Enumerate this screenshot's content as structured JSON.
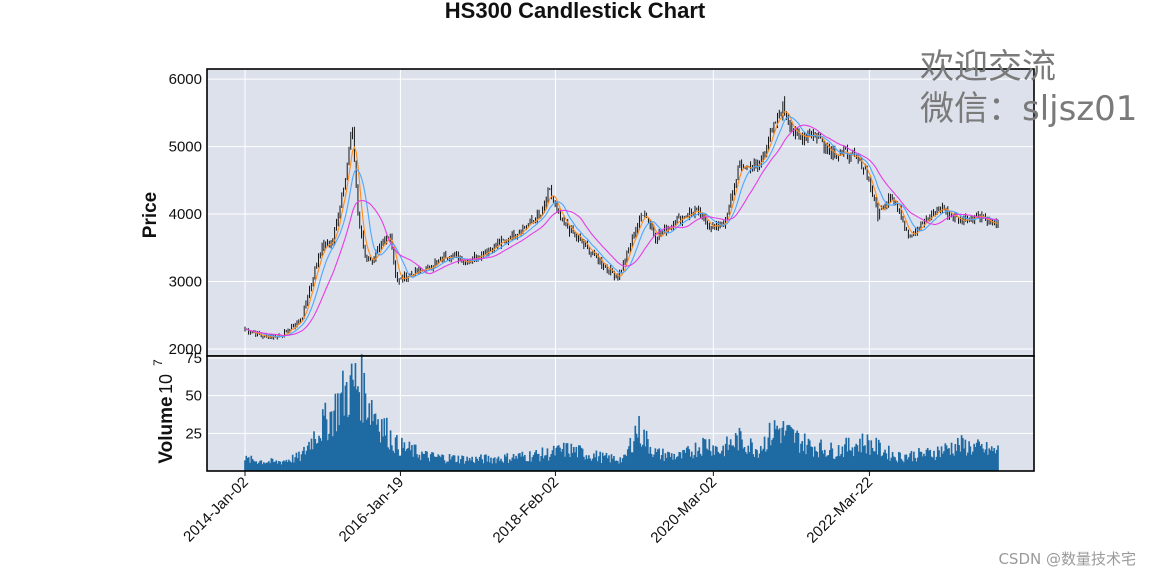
{
  "colors": {
    "panel_bg": "#dce1ec",
    "grid": "#ffffff",
    "candle": "#000000",
    "volume": "#1f6aa3",
    "ma_lines": [
      "#ff8c1a",
      "#4da6ff",
      "#e63de6"
    ]
  },
  "watermark": {
    "line1": "欢迎交流",
    "line2": "微信：sljsz01"
  },
  "credit": "CSDN @数量技术宅",
  "chart_data": {
    "type": "candlestick",
    "title": "HS300 Candlestick Chart",
    "ylabel": "Price",
    "volume_label": "Volume",
    "volume_exponent_base": "10",
    "volume_exponent": "7",
    "grid": true,
    "price_ylim": [
      2000,
      6150
    ],
    "price_ticks": [
      2000,
      3000,
      4000,
      5000,
      6000
    ],
    "volume_ylim": [
      0,
      75
    ],
    "volume_ticks": [
      25,
      50,
      75
    ],
    "x_tick_labels": [
      "2014-Jan-02",
      "2016-Jan-19",
      "2018-Feb-02",
      "2020-Mar-02",
      "2022-Mar-22"
    ],
    "price_series": {
      "dates": [
        "2014-01",
        "2014-04",
        "2014-07",
        "2014-10",
        "2015-01",
        "2015-03",
        "2015-05",
        "2015-06",
        "2015-07",
        "2015-08",
        "2015-09",
        "2015-12",
        "2016-01",
        "2016-03",
        "2016-06",
        "2016-09",
        "2016-12",
        "2017-03",
        "2017-06",
        "2017-09",
        "2017-12",
        "2018-01",
        "2018-03",
        "2018-06",
        "2018-09",
        "2018-12",
        "2019-02",
        "2019-04",
        "2019-06",
        "2019-09",
        "2019-12",
        "2020-03",
        "2020-05",
        "2020-07",
        "2020-10",
        "2021-01",
        "2021-02",
        "2021-04",
        "2021-07",
        "2021-10",
        "2021-12",
        "2022-03",
        "2022-05",
        "2022-07",
        "2022-10",
        "2022-12",
        "2023-03",
        "2023-06",
        "2023-09",
        "2023-11"
      ],
      "close": [
        2300,
        2180,
        2200,
        2450,
        3500,
        3600,
        4600,
        5300,
        3900,
        3400,
        3300,
        3700,
        3000,
        3100,
        3200,
        3400,
        3300,
        3450,
        3600,
        3800,
        4000,
        4350,
        3900,
        3600,
        3300,
        3050,
        3600,
        4050,
        3650,
        3900,
        4050,
        3800,
        3900,
        4700,
        4700,
        5400,
        5600,
        5150,
        5200,
        4900,
        4900,
        4700,
        4000,
        4300,
        3700,
        3850,
        4100,
        3900,
        4000,
        3850
      ]
    },
    "volume_series": {
      "dates": [
        "2014-01",
        "2014-06",
        "2014-10",
        "2014-12",
        "2015-03",
        "2015-05",
        "2015-07",
        "2015-09",
        "2015-11",
        "2016-01",
        "2016-06",
        "2017-01",
        "2017-06",
        "2018-01",
        "2018-04",
        "2018-10",
        "2019-01",
        "2019-03",
        "2019-06",
        "2019-10",
        "2020-02",
        "2020-04",
        "2020-07",
        "2020-10",
        "2021-01",
        "2021-06",
        "2021-10",
        "2022-03",
        "2022-08",
        "2023-01",
        "2023-06",
        "2023-11"
      ],
      "values": [
        8,
        6,
        10,
        25,
        40,
        55,
        62,
        45,
        30,
        18,
        10,
        8,
        9,
        12,
        15,
        9,
        8,
        30,
        12,
        10,
        20,
        14,
        22,
        15,
        30,
        18,
        14,
        20,
        10,
        12,
        18,
        14
      ]
    }
  }
}
